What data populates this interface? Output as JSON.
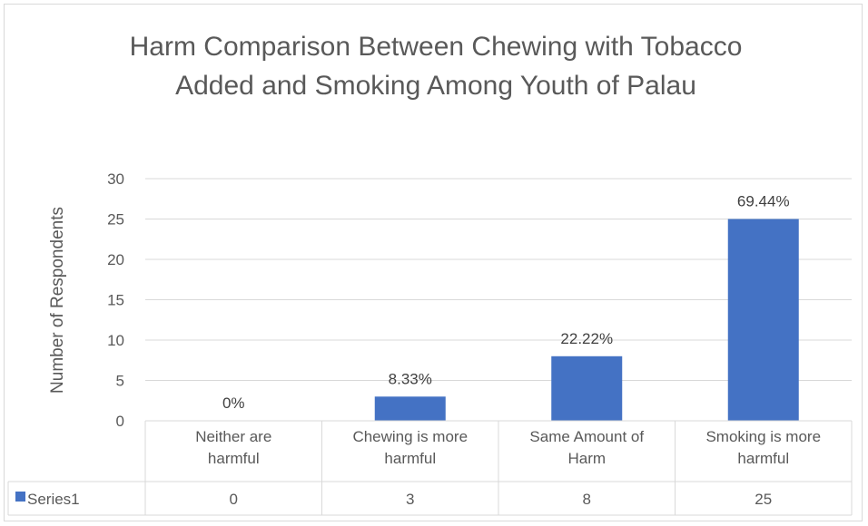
{
  "chart_data": {
    "type": "bar",
    "title": "Harm Comparison Between Chewing with Tobacco Added and Smoking Among Youth of Palau",
    "ylabel": "Number of Respondents",
    "xlabel": "",
    "ylim": [
      0,
      30
    ],
    "yticks": [
      "0",
      "5",
      "10",
      "15",
      "20",
      "25",
      "30"
    ],
    "categories": [
      [
        "Neither are",
        "harmful"
      ],
      [
        "Chewing is more",
        "harmful"
      ],
      [
        "Same Amount of",
        "Harm"
      ],
      [
        "Smoking is more",
        "harmful"
      ]
    ],
    "series": [
      {
        "name": "Series1",
        "color": "#4472c4",
        "values": [
          0,
          3,
          8,
          25
        ],
        "data_labels": [
          "0%",
          "8.33%",
          "22.22%",
          "69.44%"
        ],
        "table_values": [
          "0",
          "3",
          "8",
          "25"
        ]
      }
    ],
    "grid": true,
    "legend": "data-table"
  }
}
